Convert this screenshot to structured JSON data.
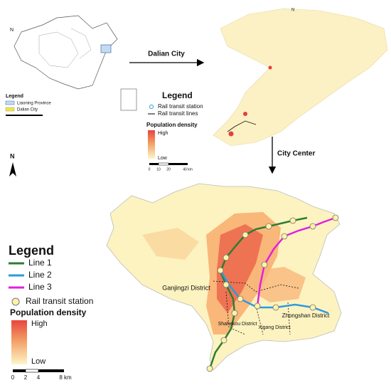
{
  "overview_map": {
    "north": "N",
    "legend": {
      "title": "Legend",
      "items": [
        "Liaoning Province",
        "Dalian City"
      ]
    }
  },
  "arrow_dalian": "Dalian City",
  "dalian_map": {
    "north": "N",
    "legend": {
      "title": "Legend",
      "items": [
        "Rail transit station",
        "Rail transit lines"
      ],
      "density_title": "Population density",
      "high": "High",
      "low": "Low"
    },
    "scale": [
      "0",
      "10",
      "20",
      "40 km"
    ]
  },
  "arrow_center": "City Center",
  "center_map": {
    "north": "N",
    "legend": {
      "title": "Legend",
      "lines": [
        {
          "name": "Line 1",
          "color": "#2e7d32"
        },
        {
          "name": "Line 2",
          "color": "#2b9be0"
        },
        {
          "name": "Line 3",
          "color": "#e020e0"
        }
      ],
      "station": "Rail transit station",
      "density_title": "Population density",
      "high": "High",
      "low": "Low"
    },
    "districts": [
      "Ganjingzi District",
      "Shahekou District",
      "Xigang District",
      "Zhongshan District"
    ],
    "scale": [
      "0",
      "2",
      "4",
      "8 km"
    ]
  }
}
